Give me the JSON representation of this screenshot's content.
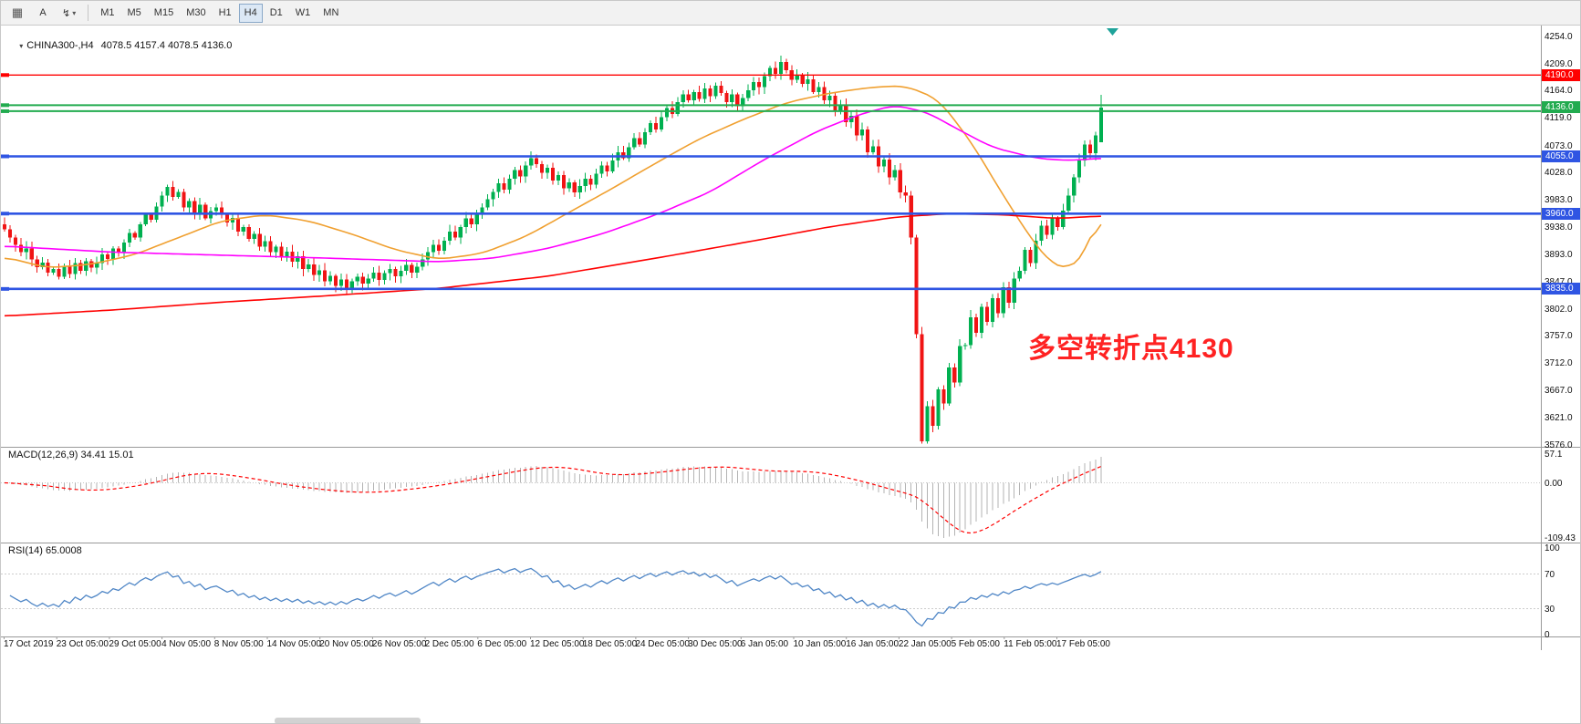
{
  "toolbar": {
    "text_tool_label": "A",
    "icons": {
      "grid": "▦",
      "cursor": "↯",
      "caret": "▾",
      "symbol_dropdown": "▾"
    },
    "timeframes": [
      "M1",
      "M5",
      "M15",
      "M30",
      "H1",
      "H4",
      "D1",
      "W1",
      "MN"
    ],
    "active_timeframe": "H4"
  },
  "main_chart": {
    "title_symbol": "CHINA300-,H4",
    "title_ohlc": "4078.5 4157.4 4078.5 4136.0",
    "annotation": {
      "text": "多空转折点4130",
      "color": "#ff2222"
    },
    "colors": {
      "up": "#00b050",
      "down": "#f01414",
      "ma_fast": "#f0a030",
      "ma_mid": "#ff00ff",
      "ma_slow": "#ff0000",
      "hline_blue": "#2f55e3",
      "hline_green": "#22ab4f",
      "hline_red": "#ff0000",
      "macd_histogram": "#b3b3b3",
      "macd_signal": "#ff0000",
      "rsi_line": "#4f86c6"
    }
  },
  "macd": {
    "label": "MACD(12,26,9) 34.41 15.01"
  },
  "rsi": {
    "label": "RSI(14) 65.0008"
  },
  "chart_data": {
    "type": "candlestick",
    "symbol": "CHINA300-",
    "timeframe": "H4",
    "last_bar_ohlc": {
      "open": 4078.5,
      "high": 4157.4,
      "low": 4078.5,
      "close": 4136.0
    },
    "price_axis": {
      "min": 3576.0,
      "max": 4254.0,
      "ticks": [
        "4254.0",
        "4209.0",
        "4164.0",
        "4119.0",
        "4073.0",
        "4028.0",
        "3983.0",
        "3938.0",
        "3893.0",
        "3847.0",
        "3802.0",
        "3757.0",
        "3712.0",
        "3667.0",
        "3621.0",
        "3576.0"
      ]
    },
    "time_ticks": [
      "17 Oct 2019",
      "23 Oct 05:00",
      "29 Oct 05:00",
      "4 Nov 05:00",
      "8 Nov 05:00",
      "14 Nov 05:00",
      "20 Nov 05:00",
      "26 Nov 05:00",
      "2 Dec 05:00",
      "6 Dec 05:00",
      "12 Dec 05:00",
      "18 Dec 05:00",
      "24 Dec 05:00",
      "30 Dec 05:00",
      "6 Jan 05:00",
      "10 Jan 05:00",
      "16 Jan 05:00",
      "22 Jan 05:00",
      "5 Feb 05:00",
      "11 Feb 05:00",
      "17 Feb 05:00"
    ],
    "closes": [
      3934,
      3920,
      3908,
      3896,
      3902,
      3884,
      3871,
      3879,
      3862,
      3868,
      3855,
      3872,
      3860,
      3878,
      3865,
      3881,
      3870,
      3878,
      3892,
      3885,
      3902,
      3896,
      3912,
      3928,
      3920,
      3942,
      3958,
      3950,
      3972,
      3990,
      4004,
      3988,
      3996,
      3970,
      3981,
      3962,
      3975,
      3952,
      3964,
      3970,
      3958,
      3945,
      3953,
      3930,
      3938,
      3918,
      3926,
      3905,
      3914,
      3896,
      3905,
      3888,
      3897,
      3880,
      3889,
      3868,
      3876,
      3858,
      3866,
      3848,
      3857,
      3840,
      3851,
      3837,
      3848,
      3855,
      3844,
      3852,
      3862,
      3850,
      3861,
      3868,
      3856,
      3865,
      3875,
      3862,
      3872,
      3884,
      3896,
      3908,
      3898,
      3915,
      3930,
      3920,
      3938,
      3952,
      3942,
      3958,
      3970,
      3984,
      3996,
      4010,
      4000,
      4018,
      4032,
      4022,
      4040,
      4052,
      4042,
      4028,
      4036,
      4015,
      4024,
      4002,
      4012,
      3995,
      4006,
      4018,
      4008,
      4026,
      4040,
      4030,
      4048,
      4062,
      4052,
      4070,
      4085,
      4075,
      4095,
      4110,
      4100,
      4120,
      4135,
      4125,
      4145,
      4158,
      4148,
      4162,
      4150,
      4168,
      4155,
      4172,
      4160,
      4145,
      4158,
      4138,
      4152,
      4165,
      4178,
      4170,
      4188,
      4202,
      4192,
      4212,
      4198,
      4182,
      4190,
      4175,
      4183,
      4162,
      4170,
      4148,
      4156,
      4130,
      4140,
      4112,
      4122,
      4090,
      4100,
      4062,
      4072,
      4038,
      4050,
      4020,
      4032,
      3995,
      3990,
      3920,
      3760,
      3582,
      3640,
      3608,
      3668,
      3645,
      3705,
      3680,
      3740,
      3742,
      3788,
      3762,
      3805,
      3780,
      3820,
      3795,
      3838,
      3812,
      3852,
      3865,
      3900,
      3878,
      3915,
      3940,
      3925,
      3952,
      3938,
      3965,
      3990,
      4020,
      4048,
      4075,
      4060,
      4090,
      4136
    ],
    "hlines": [
      {
        "value": 4190,
        "color": "#ff0000",
        "width": 1.4
      },
      {
        "value": 4140,
        "color": "#22ab4f",
        "width": 2
      },
      {
        "value": 4130,
        "color": "#22ab4f",
        "width": 2
      },
      {
        "value": 4055,
        "color": "#2f55e3",
        "width": 2.6
      },
      {
        "value": 3960,
        "color": "#2f55e3",
        "width": 2.6
      },
      {
        "value": 3835,
        "color": "#2f55e3",
        "width": 2.6
      }
    ],
    "price_tags": [
      {
        "label": "4190.0",
        "value": 4190,
        "color": "#ff0000"
      },
      {
        "label": "4136.0",
        "value": 4136,
        "color": "#22ab4f"
      },
      {
        "label": "4055.0",
        "value": 4055,
        "color": "#2f55e3"
      },
      {
        "label": "3960.0",
        "value": 3960,
        "color": "#2f55e3"
      },
      {
        "label": "3835.0",
        "value": 3835,
        "color": "#2f55e3"
      }
    ],
    "moving_averages": [
      {
        "name": "ma-fast-orange",
        "color": "#f0a030",
        "points": [
          [
            0,
            3888
          ],
          [
            8,
            3870
          ],
          [
            16,
            3876
          ],
          [
            24,
            3892
          ],
          [
            32,
            3920
          ],
          [
            40,
            3948
          ],
          [
            48,
            3958
          ],
          [
            56,
            3948
          ],
          [
            64,
            3926
          ],
          [
            72,
            3900
          ],
          [
            80,
            3884
          ],
          [
            88,
            3894
          ],
          [
            96,
            3922
          ],
          [
            104,
            3962
          ],
          [
            112,
            4002
          ],
          [
            120,
            4044
          ],
          [
            128,
            4084
          ],
          [
            136,
            4116
          ],
          [
            144,
            4144
          ],
          [
            152,
            4160
          ],
          [
            160,
            4170
          ],
          [
            166,
            4172
          ],
          [
            172,
            4150
          ],
          [
            178,
            4080
          ],
          [
            184,
            3990
          ],
          [
            189,
            3920
          ],
          [
            193,
            3875
          ],
          [
            196,
            3868
          ],
          [
            199,
            3890
          ],
          [
            202,
            3968
          ]
        ]
      },
      {
        "name": "ma-mid-magenta",
        "color": "#ff00ff",
        "points": [
          [
            0,
            3906
          ],
          [
            20,
            3896
          ],
          [
            40,
            3891
          ],
          [
            60,
            3886
          ],
          [
            80,
            3880
          ],
          [
            90,
            3886
          ],
          [
            100,
            3902
          ],
          [
            110,
            3926
          ],
          [
            120,
            3958
          ],
          [
            130,
            3996
          ],
          [
            140,
            4050
          ],
          [
            150,
            4098
          ],
          [
            158,
            4126
          ],
          [
            164,
            4140
          ],
          [
            170,
            4128
          ],
          [
            176,
            4098
          ],
          [
            182,
            4070
          ],
          [
            190,
            4052
          ],
          [
            196,
            4048
          ],
          [
            202,
            4052
          ]
        ]
      },
      {
        "name": "ma-slow-red",
        "color": "#ff0000",
        "points": [
          [
            0,
            3790
          ],
          [
            20,
            3800
          ],
          [
            40,
            3813
          ],
          [
            60,
            3824
          ],
          [
            80,
            3836
          ],
          [
            100,
            3856
          ],
          [
            120,
            3886
          ],
          [
            140,
            3918
          ],
          [
            152,
            3938
          ],
          [
            164,
            3954
          ],
          [
            174,
            3960
          ],
          [
            184,
            3958
          ],
          [
            194,
            3952
          ],
          [
            202,
            3956
          ]
        ]
      }
    ],
    "indicators": {
      "macd": {
        "params": [
          12,
          26,
          9
        ],
        "main": 34.41,
        "signal": 15.01,
        "axis_ticks": [
          "57.1",
          "0.00",
          "-109.43"
        ],
        "axis_max": 57.1,
        "axis_min": -109.43
      },
      "rsi": {
        "period": 14,
        "value": 65.0008,
        "axis_ticks": [
          "100",
          "70",
          "30",
          "0"
        ],
        "levels": [
          70,
          30
        ]
      }
    }
  }
}
